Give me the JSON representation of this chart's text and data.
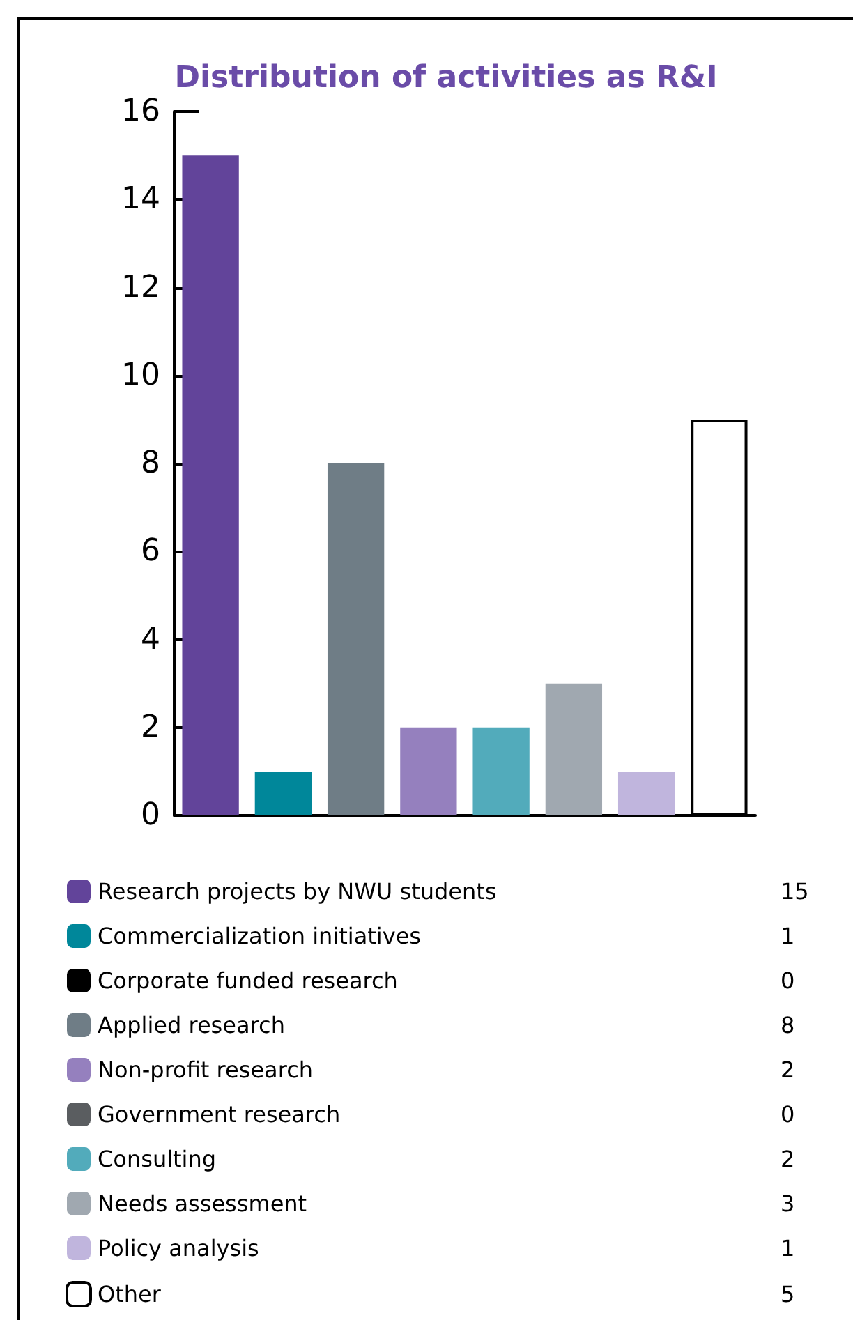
{
  "chart_data": {
    "type": "bar",
    "title": "Distribution of activities as R&I",
    "categories": [
      null,
      null,
      null,
      null,
      null,
      null,
      null,
      null
    ],
    "stacked": true,
    "ylim": [
      0,
      16
    ],
    "yticks": [
      0,
      2,
      4,
      6,
      8,
      10,
      12,
      14,
      16
    ],
    "grid": false,
    "legend": "bottom",
    "series": [
      {
        "name": "Research projects by NWU students",
        "color": "#62449a",
        "values": [
          15,
          null,
          null,
          null,
          null,
          null,
          null,
          null
        ]
      },
      {
        "name": "Commercialization initiatives",
        "color": "#00879a",
        "values": [
          null,
          1,
          null,
          null,
          null,
          null,
          null,
          null
        ]
      },
      {
        "name": "Corporate funded research",
        "color": "#000000",
        "values": [
          null,
          null,
          null,
          null,
          null,
          null,
          null,
          null
        ]
      },
      {
        "name": "Applied research",
        "color": "#6f7d86",
        "values": [
          null,
          null,
          8,
          null,
          null,
          null,
          null,
          null
        ]
      },
      {
        "name": "Non-profit research",
        "color": "#9580be",
        "values": [
          null,
          null,
          null,
          2,
          null,
          null,
          null,
          null
        ]
      },
      {
        "name": "Government research",
        "color": "#5a5d60",
        "values": [
          null,
          null,
          null,
          null,
          null,
          null,
          null,
          null
        ]
      },
      {
        "name": "Consulting",
        "color": "#52abbb",
        "values": [
          null,
          null,
          null,
          null,
          2,
          null,
          null,
          null
        ]
      },
      {
        "name": "Needs assessment",
        "color": "#a0a8b0",
        "values": [
          null,
          null,
          null,
          null,
          null,
          3,
          null,
          null
        ]
      },
      {
        "name": "Policy analysis",
        "color": "#c0b5dd",
        "values": [
          null,
          null,
          null,
          null,
          null,
          null,
          1,
          null
        ]
      },
      {
        "name": "Other",
        "color": "#ffffff",
        "values": [
          null,
          null,
          null,
          null,
          null,
          null,
          null,
          9
        ]
      }
    ],
    "annotations": [
      "15",
      "1",
      "0",
      "8",
      "2",
      "0",
      "2",
      "3",
      "1",
      "5"
    ]
  }
}
